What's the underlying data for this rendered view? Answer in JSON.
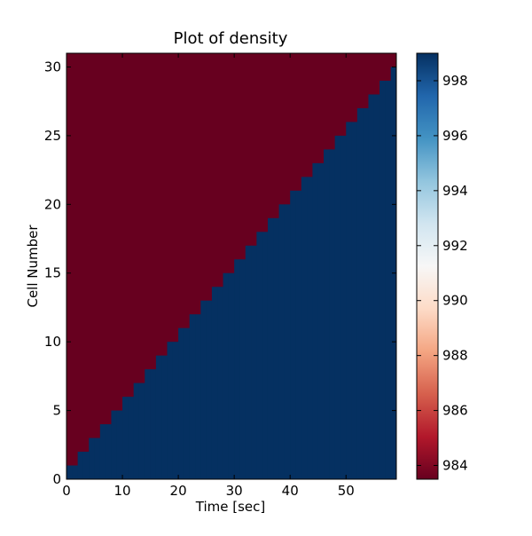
{
  "chart_data": {
    "type": "heatmap",
    "title": "Plot of density",
    "xlabel": "Time [sec]",
    "ylabel": "Cell Number",
    "xlim": [
      0,
      59
    ],
    "ylim": [
      0,
      31
    ],
    "x_ticks": [
      0,
      10,
      20,
      30,
      40,
      50
    ],
    "y_ticks": [
      0,
      5,
      10,
      15,
      20,
      25,
      30
    ],
    "n_time_steps": 59,
    "n_cells": 31,
    "low_value": 983.5,
    "high_value": 999.0,
    "boundary_cell_by_time_step": [
      1,
      1,
      2,
      2,
      3,
      3,
      4,
      4,
      5,
      5,
      6,
      6,
      7,
      7,
      8,
      8,
      9,
      9,
      10,
      10,
      11,
      11,
      12,
      12,
      13,
      13,
      14,
      14,
      15,
      15,
      16,
      16,
      17,
      17,
      18,
      18,
      19,
      19,
      20,
      20,
      21,
      21,
      22,
      22,
      23,
      23,
      24,
      24,
      25,
      25,
      26,
      26,
      27,
      27,
      28,
      28,
      29,
      29,
      30
    ],
    "description_rule": "cells below the boundary index are high density (~999), cells at or above are low density (~983.5)",
    "colorbar": {
      "range": [
        983.5,
        999.0
      ],
      "ticks": [
        984,
        986,
        988,
        990,
        992,
        994,
        996,
        998
      ],
      "colormap": "RdBu"
    },
    "colors": {
      "low": "#67001f",
      "high": "#053061"
    }
  }
}
